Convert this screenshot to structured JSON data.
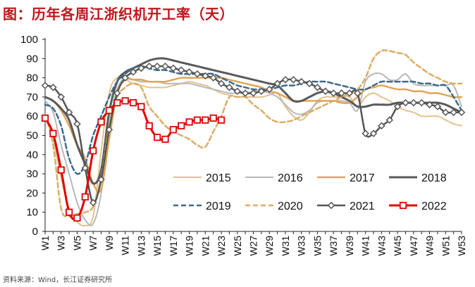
{
  "title": "图：历年各周江浙织机开工率（天）",
  "source": "资料来源：Wind，长江证券研究所",
  "chart_data": {
    "type": "line",
    "title": "图：历年各周江浙织机开工率（天）",
    "xlabel": "",
    "ylabel": "",
    "ylim": [
      0,
      100
    ],
    "yticks": [
      0,
      10,
      20,
      30,
      40,
      50,
      60,
      70,
      80,
      90,
      100
    ],
    "x_tick_labels": [
      "W1",
      "W3",
      "W5",
      "W7",
      "W9",
      "W11",
      "W13",
      "W15",
      "W17",
      "W19",
      "W21",
      "W23",
      "W25",
      "W27",
      "W29",
      "W31",
      "W33",
      "W35",
      "W37",
      "W39",
      "W41",
      "W43",
      "W45",
      "W47",
      "W49",
      "W51",
      "W53"
    ],
    "weeks": 53,
    "legend": [
      "2015",
      "2016",
      "2017",
      "2018",
      "2019",
      "2020",
      "2021",
      "2022"
    ],
    "series": [
      {
        "name": "2015",
        "color": "#e3c08d",
        "style": "solid",
        "marker": "none",
        "values": [
          61,
          48,
          28,
          12,
          5,
          3,
          8,
          42,
          72,
          80,
          79,
          77,
          76,
          75,
          75,
          75,
          76,
          77,
          78,
          77,
          76,
          74,
          72,
          71,
          70,
          70,
          70,
          70,
          71,
          72,
          65,
          60,
          58,
          62,
          68,
          70,
          70,
          70,
          70,
          65,
          70,
          72,
          70,
          68,
          65,
          63,
          62,
          60,
          60,
          60,
          58,
          56,
          55
        ]
      },
      {
        "name": "2016",
        "color": "#b8b8b8",
        "style": "solid",
        "marker": "none",
        "values": [
          68,
          62,
          45,
          30,
          15,
          6,
          4,
          20,
          55,
          74,
          80,
          79,
          78,
          78,
          78,
          77,
          77,
          77,
          77,
          76,
          75,
          74,
          73,
          72,
          72,
          72,
          73,
          73,
          72,
          70,
          66,
          62,
          61,
          63,
          67,
          68,
          68,
          68,
          67,
          63,
          78,
          82,
          82,
          79,
          79,
          82,
          77,
          76,
          76,
          76,
          76,
          76,
          65
        ]
      },
      {
        "name": "2017",
        "color": "#e0a557",
        "style": "solid",
        "marker": "none",
        "values": [
          70,
          68,
          63,
          55,
          45,
          38,
          25,
          22,
          48,
          72,
          79,
          79,
          79,
          78,
          78,
          78,
          79,
          80,
          80,
          80,
          80,
          80,
          80,
          79,
          78,
          77,
          76,
          75,
          73,
          72,
          70,
          68,
          68,
          68,
          68,
          68,
          68,
          67,
          67,
          70,
          74,
          75,
          76,
          75,
          74,
          74,
          73,
          73,
          72,
          72,
          71,
          70,
          70
        ]
      },
      {
        "name": "2018",
        "color": "#595959",
        "style": "solid",
        "marker": "none",
        "values": [
          70,
          68,
          64,
          58,
          45,
          35,
          25,
          32,
          62,
          78,
          83,
          85,
          87,
          89,
          90,
          90,
          89,
          88,
          87,
          86,
          85,
          84,
          83,
          82,
          81,
          80,
          79,
          78,
          77,
          76,
          72,
          68,
          68,
          70,
          72,
          73,
          72,
          70,
          68,
          65,
          65,
          66,
          66,
          66,
          67,
          67,
          67,
          67,
          67,
          67,
          66,
          64,
          62
        ]
      },
      {
        "name": "2019",
        "color": "#3c6a8a",
        "style": "dashed",
        "marker": "none",
        "values": [
          66,
          64,
          55,
          38,
          30,
          35,
          50,
          60,
          70,
          78,
          82,
          85,
          86,
          85,
          84,
          84,
          83,
          82,
          82,
          82,
          82,
          82,
          80,
          78,
          76,
          75,
          74,
          74,
          74,
          75,
          76,
          76,
          77,
          78,
          78,
          78,
          77,
          76,
          75,
          74,
          74,
          76,
          78,
          78,
          78,
          78,
          78,
          77,
          77,
          76,
          76,
          70,
          63
        ]
      },
      {
        "name": "2020",
        "color": "#dcac66",
        "style": "dashed",
        "marker": "none",
        "values": [
          61,
          45,
          12,
          8,
          9,
          10,
          13,
          28,
          55,
          70,
          75,
          77,
          75,
          65,
          60,
          55,
          52,
          50,
          48,
          45,
          44,
          52,
          60,
          70,
          70,
          70,
          66,
          63,
          59,
          57,
          57,
          58,
          60,
          62,
          64,
          66,
          68,
          70,
          72,
          74,
          80,
          90,
          94,
          94,
          93,
          92,
          88,
          85,
          82,
          80,
          78,
          77,
          77
        ]
      },
      {
        "name": "2021",
        "color": "#555555",
        "style": "solid",
        "marker": "diamond",
        "values": [
          76,
          75,
          70,
          62,
          56,
          33,
          15,
          27,
          53,
          72,
          80,
          83,
          85,
          86,
          86,
          86,
          85,
          84,
          83,
          82,
          81,
          80,
          77,
          75,
          73,
          72,
          72,
          73,
          74,
          77,
          79,
          79,
          78,
          77,
          75,
          73,
          72,
          72,
          72,
          72,
          51,
          51,
          55,
          58,
          65,
          67,
          67,
          67,
          66,
          65,
          62,
          62,
          62
        ]
      },
      {
        "name": "2022",
        "color": "#e00000",
        "style": "solid",
        "marker": "square",
        "values": [
          59,
          51,
          32,
          10,
          7,
          18,
          42,
          57,
          63,
          67,
          68,
          67,
          65,
          55,
          49,
          48,
          53,
          55,
          57,
          58,
          58,
          59,
          58
        ]
      }
    ]
  }
}
